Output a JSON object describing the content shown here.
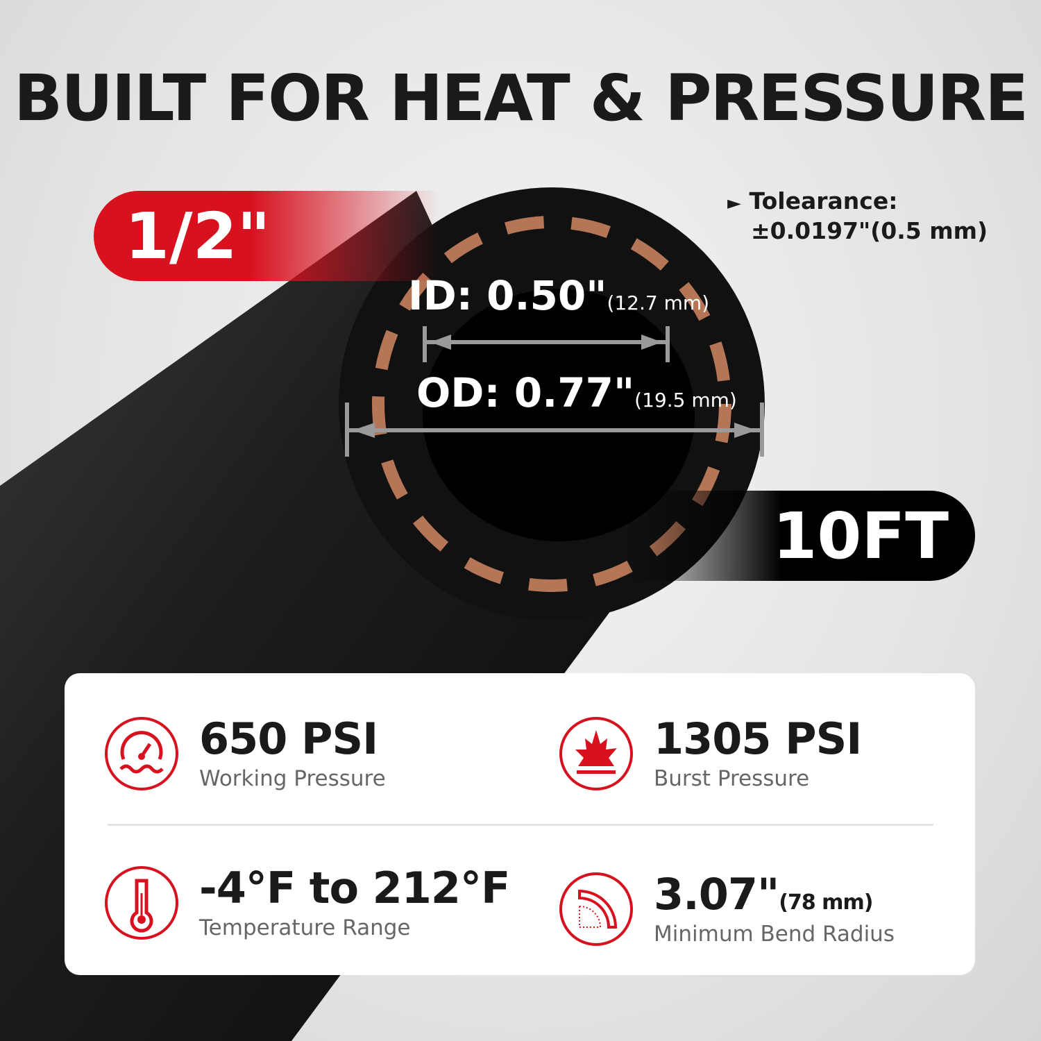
{
  "title": "BUILT FOR HEAT & PRESSURE",
  "size_badge": "1/2\"",
  "length_badge": "10FT",
  "tolerance": {
    "label": "Tolearance:",
    "value": "±0.0197\"(0.5 mm)"
  },
  "id_dim": {
    "label": "ID: 0.50\"",
    "metric": "(12.7 mm)"
  },
  "od_dim": {
    "label": "OD: 0.77\"",
    "metric": "(19.5 mm)"
  },
  "accent_color": "#d8111f",
  "specs": [
    {
      "icon": "pressure-gauge-icon",
      "value": "650 PSI",
      "label": "Working Pressure"
    },
    {
      "icon": "burst-icon",
      "value": "1305 PSI",
      "label": "Burst Pressure"
    },
    {
      "icon": "thermometer-icon",
      "value": "-4°F to 212°F",
      "label": "Temperature Range"
    },
    {
      "icon": "bend-radius-icon",
      "value": "3.07\"",
      "metric": "(78 mm)",
      "label": "Minimum Bend Radius"
    }
  ]
}
